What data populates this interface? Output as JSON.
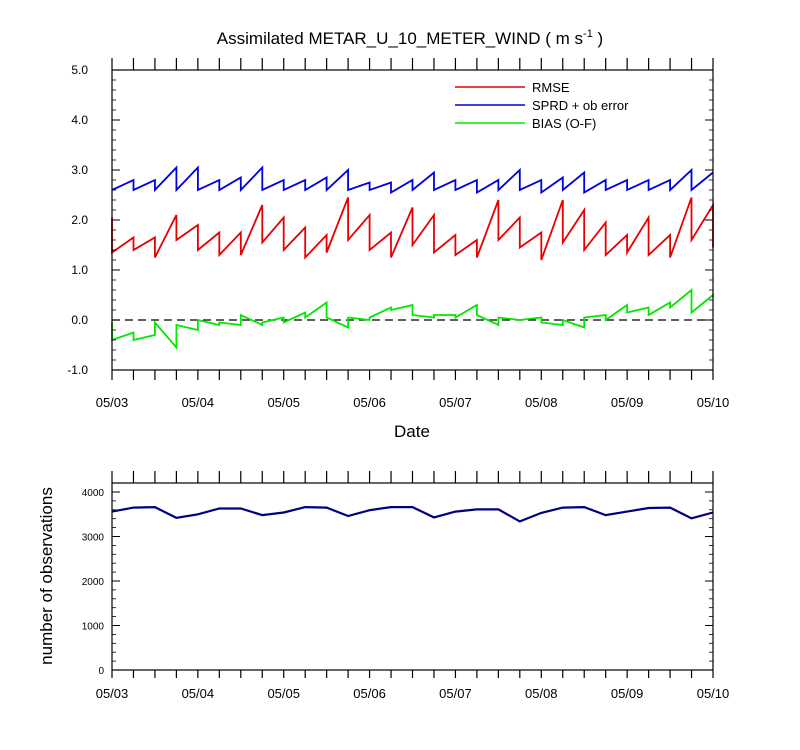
{
  "chart_data": [
    {
      "type": "line",
      "title": "Assimilated METAR_U_10_METER_WIND",
      "title_units": "( m s",
      "title_units_sup": "-1",
      "title_units_close": " )",
      "xlabel": "Date",
      "ylabel": "",
      "ylim": [
        -1.0,
        5.0
      ],
      "yticks": [
        -1.0,
        0.0,
        1.0,
        2.0,
        3.0,
        4.0,
        5.0
      ],
      "ytick_labels": [
        "-1.0",
        "0.0",
        "1.0",
        "2.0",
        "3.0",
        "4.0",
        "5.0"
      ],
      "xlim": [
        "05/03",
        "05/10"
      ],
      "x_tick_labels": [
        "05/03",
        "05/04",
        "05/05",
        "05/06",
        "05/07",
        "05/08",
        "05/09",
        "05/10"
      ],
      "x_day_fraction_ticks": 4,
      "legend_position": "top-right",
      "reference_line": {
        "y": 0.0,
        "style": "dashed",
        "color": "#000000"
      },
      "x_units": "days after 05/03 00:00",
      "series": [
        {
          "name": "RMSE",
          "color": "#e80000",
          "x": [
            0,
            0,
            0.25,
            0.25,
            0.5,
            0.5,
            0.75,
            0.75,
            1,
            1,
            1.25,
            1.25,
            1.5,
            1.5,
            1.75,
            1.75,
            2,
            2,
            2.25,
            2.25,
            2.5,
            2.5,
            2.75,
            2.75,
            3,
            3,
            3.25,
            3.25,
            3.5,
            3.5,
            3.75,
            3.75,
            4,
            4,
            4.25,
            4.25,
            4.5,
            4.5,
            4.75,
            4.75,
            5,
            5,
            5.25,
            5.25,
            5.5,
            5.5,
            5.75,
            5.75,
            6,
            6,
            6.25,
            6.25,
            6.5,
            6.5,
            6.75,
            6.75,
            7,
            7
          ],
          "values": [
            2.05,
            1.35,
            1.65,
            1.4,
            1.65,
            1.25,
            2.1,
            1.6,
            1.9,
            1.4,
            1.75,
            1.3,
            1.75,
            1.3,
            2.3,
            1.55,
            2.05,
            1.4,
            1.85,
            1.25,
            1.7,
            1.35,
            2.45,
            1.6,
            2.1,
            1.4,
            1.75,
            1.25,
            2.25,
            1.5,
            2.1,
            1.35,
            1.7,
            1.3,
            1.6,
            1.25,
            2.4,
            1.6,
            2.05,
            1.45,
            1.75,
            1.2,
            2.4,
            1.55,
            2.2,
            1.4,
            1.95,
            1.3,
            1.7,
            1.35,
            2.05,
            1.3,
            1.7,
            1.25,
            2.45,
            1.6,
            2.3,
            1.45
          ]
        },
        {
          "name": "SPRD + ob error",
          "color": "#0000e0",
          "x": [
            0,
            0.25,
            0.25,
            0.5,
            0.5,
            0.75,
            0.75,
            1,
            1,
            1.25,
            1.25,
            1.5,
            1.5,
            1.75,
            1.75,
            2,
            2,
            2.25,
            2.25,
            2.5,
            2.5,
            2.75,
            2.75,
            3,
            3,
            3.25,
            3.25,
            3.5,
            3.5,
            3.75,
            3.75,
            4,
            4,
            4.25,
            4.25,
            4.5,
            4.5,
            4.75,
            4.75,
            5,
            5,
            5.25,
            5.25,
            5.5,
            5.5,
            5.75,
            5.75,
            6,
            6,
            6.25,
            6.25,
            6.5,
            6.5,
            6.75,
            6.75,
            7
          ],
          "values": [
            2.6,
            2.8,
            2.6,
            2.8,
            2.6,
            3.05,
            2.6,
            3.05,
            2.6,
            2.8,
            2.6,
            2.85,
            2.6,
            3.05,
            2.6,
            2.8,
            2.6,
            2.8,
            2.6,
            2.85,
            2.6,
            3.0,
            2.6,
            2.75,
            2.6,
            2.75,
            2.55,
            2.8,
            2.6,
            2.95,
            2.6,
            2.8,
            2.6,
            2.8,
            2.55,
            2.8,
            2.6,
            3.0,
            2.6,
            2.8,
            2.55,
            2.85,
            2.6,
            2.95,
            2.55,
            2.8,
            2.6,
            2.8,
            2.6,
            2.8,
            2.6,
            2.8,
            2.6,
            3.0,
            2.6,
            2.95
          ]
        },
        {
          "name": "BIAS (O-F)",
          "color": "#00e800",
          "x": [
            0,
            0,
            0.25,
            0.25,
            0.5,
            0.5,
            0.75,
            0.75,
            1,
            1,
            1.25,
            1.25,
            1.5,
            1.5,
            1.75,
            1.75,
            2,
            2,
            2.25,
            2.25,
            2.5,
            2.5,
            2.75,
            2.75,
            3,
            3,
            3.25,
            3.25,
            3.5,
            3.5,
            3.75,
            3.75,
            4,
            4,
            4.25,
            4.25,
            4.5,
            4.5,
            4.75,
            4.75,
            5,
            5,
            5.25,
            5.25,
            5.5,
            5.5,
            5.75,
            5.75,
            6,
            6,
            6.25,
            6.25,
            6.5,
            6.5,
            6.75,
            6.75,
            7,
            7
          ],
          "values": [
            -0.05,
            -0.4,
            -0.25,
            -0.4,
            -0.3,
            -0.05,
            -0.55,
            -0.1,
            -0.2,
            0.0,
            -0.1,
            -0.05,
            -0.1,
            0.1,
            -0.1,
            -0.05,
            0.05,
            -0.05,
            0.15,
            0.05,
            0.35,
            0.05,
            -0.15,
            0.05,
            0.0,
            0.05,
            0.25,
            0.2,
            0.3,
            0.1,
            0.05,
            0.1,
            0.1,
            0.05,
            0.3,
            0.1,
            -0.1,
            0.05,
            0.0,
            0.0,
            0.05,
            -0.05,
            -0.1,
            0.0,
            -0.15,
            0.05,
            0.1,
            0.0,
            0.3,
            0.15,
            0.25,
            0.1,
            0.35,
            0.25,
            0.6,
            0.15,
            0.5,
            0.45
          ]
        }
      ]
    },
    {
      "type": "line",
      "title": "",
      "xlabel": "",
      "ylabel": "number of observations",
      "ylim": [
        0,
        4000
      ],
      "yticks": [
        0,
        1000,
        2000,
        3000,
        4000
      ],
      "ytick_labels": [
        "0",
        "1000",
        "2000",
        "3000",
        "4000"
      ],
      "x_tick_labels": [
        "05/03",
        "05/04",
        "05/05",
        "05/06",
        "05/07",
        "05/08",
        "05/09",
        "05/10"
      ],
      "x_units": "days after 05/03 00:00",
      "series": [
        {
          "name": "",
          "color": "#000080",
          "x": [
            0,
            0.25,
            0.5,
            0.75,
            1,
            1.25,
            1.5,
            1.75,
            2,
            2.25,
            2.5,
            2.75,
            3,
            3.25,
            3.5,
            3.75,
            4,
            4.25,
            4.5,
            4.75,
            5,
            5.25,
            5.5,
            5.75,
            6,
            6.25,
            6.5,
            6.75,
            7
          ],
          "values": [
            3560,
            3650,
            3660,
            3420,
            3500,
            3630,
            3630,
            3480,
            3540,
            3660,
            3650,
            3460,
            3590,
            3660,
            3660,
            3430,
            3560,
            3610,
            3610,
            3340,
            3530,
            3650,
            3660,
            3480,
            3560,
            3640,
            3650,
            3410,
            3540
          ]
        }
      ]
    }
  ]
}
